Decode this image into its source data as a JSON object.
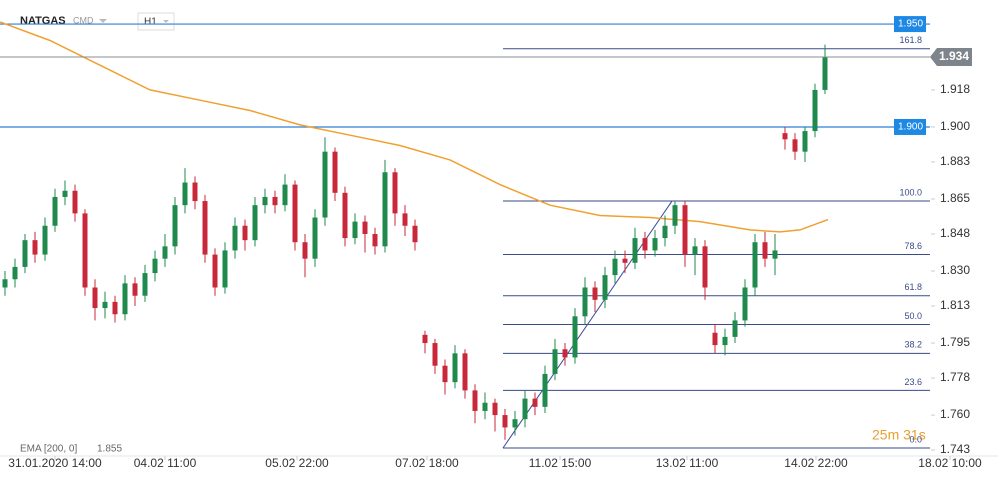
{
  "chart_data": {
    "type": "candlestick",
    "title": "NATGAS",
    "subtitle": "CMD",
    "timeframe": "H1",
    "countdown": "25m 31s",
    "xlim": [
      0,
      99.8
    ],
    "ylim": [
      1.7406,
      1.9617
    ],
    "xticks": [
      {
        "value": 5.5,
        "label": "31.01.2020 14:00"
      },
      {
        "value": 16.5,
        "label": "04.02 11:00"
      },
      {
        "value": 29.7,
        "label": "05.02 22:00"
      },
      {
        "value": 42.7,
        "label": "07.02 18:00"
      },
      {
        "value": 56,
        "label": "11.02 15:00"
      },
      {
        "value": 68.7,
        "label": "13.02 11:00"
      },
      {
        "value": 81.6,
        "label": "14.02 22:00"
      },
      {
        "value": 95,
        "label": "18.02 10:00"
      }
    ],
    "yticks": [
      {
        "value": 1.743,
        "label": "1.743"
      },
      {
        "value": 1.76,
        "label": "1.760"
      },
      {
        "value": 1.778,
        "label": "1.778"
      },
      {
        "value": 1.795,
        "label": "1.795"
      },
      {
        "value": 1.813,
        "label": "1.813"
      },
      {
        "value": 1.83,
        "label": "1.830"
      },
      {
        "value": 1.848,
        "label": "1.848"
      },
      {
        "value": 1.865,
        "label": "1.865"
      },
      {
        "value": 1.883,
        "label": "1.883"
      },
      {
        "value": 1.9,
        "label": "1.900"
      },
      {
        "value": 1.918,
        "label": "1.918"
      }
    ],
    "up_color": "#1f8a4c",
    "down_color": "#c8283a",
    "candles": {
      "open": [
        1.822,
        1.826,
        1.832,
        1.845,
        1.838,
        1.852,
        1.866,
        1.869,
        1.858,
        1.822,
        1.812,
        1.815,
        1.809,
        1.824,
        1.818,
        1.829,
        1.836,
        1.842,
        1.862,
        1.873,
        1.864,
        1.838,
        1.822,
        1.84,
        1.852,
        1.845,
        1.862,
        1.866,
        1.862,
        1.872,
        1.844,
        1.836,
        1.856,
        1.888,
        1.868,
        1.846,
        1.854,
        1.848,
        1.842,
        1.878,
        1.858,
        1.852,
        1.799,
        1.795,
        1.784,
        1.776,
        1.79,
        1.772,
        1.762,
        1.766,
        1.76,
        1.754,
        1.758,
        1.768,
        1.764,
        1.78,
        1.792,
        1.788,
        1.808,
        1.822,
        1.816,
        1.828,
        1.836,
        1.834,
        1.846,
        1.84,
        1.846,
        1.852,
        1.862,
        1.838,
        1.842,
        1.8,
        1.794,
        1.798,
        1.806,
        1.822,
        1.844,
        1.836,
        1.897,
        1.894,
        1.888,
        1.898,
        1.918
      ],
      "high": [
        1.83,
        1.836,
        1.848,
        1.849,
        1.856,
        1.87,
        1.874,
        1.872,
        1.86,
        1.826,
        1.82,
        1.818,
        1.828,
        1.827,
        1.833,
        1.84,
        1.848,
        1.866,
        1.88,
        1.876,
        1.867,
        1.841,
        1.844,
        1.856,
        1.855,
        1.866,
        1.87,
        1.869,
        1.877,
        1.874,
        1.848,
        1.86,
        1.895,
        1.89,
        1.871,
        1.858,
        1.857,
        1.851,
        1.884,
        1.88,
        1.862,
        1.855,
        1.801,
        1.797,
        1.787,
        1.794,
        1.792,
        1.775,
        1.771,
        1.768,
        1.763,
        1.762,
        1.772,
        1.771,
        1.784,
        1.797,
        1.795,
        1.812,
        1.827,
        1.825,
        1.832,
        1.84,
        1.84,
        1.851,
        1.849,
        1.85,
        1.857,
        1.864,
        1.864,
        1.846,
        1.845,
        1.804,
        1.802,
        1.81,
        1.826,
        1.848,
        1.849,
        1.848,
        1.9,
        1.897,
        1.9,
        1.921,
        1.94
      ],
      "low": [
        1.818,
        1.822,
        1.829,
        1.834,
        1.835,
        1.849,
        1.862,
        1.854,
        1.818,
        1.806,
        1.807,
        1.805,
        1.806,
        1.813,
        1.815,
        1.825,
        1.832,
        1.838,
        1.858,
        1.86,
        1.834,
        1.818,
        1.819,
        1.836,
        1.84,
        1.842,
        1.858,
        1.858,
        1.859,
        1.84,
        1.827,
        1.832,
        1.852,
        1.864,
        1.842,
        1.843,
        1.839,
        1.838,
        1.839,
        1.852,
        1.847,
        1.84,
        1.79,
        1.78,
        1.77,
        1.773,
        1.768,
        1.756,
        1.758,
        1.752,
        1.748,
        1.75,
        1.754,
        1.76,
        1.761,
        1.777,
        1.784,
        1.785,
        1.804,
        1.81,
        1.812,
        1.824,
        1.829,
        1.831,
        1.836,
        1.837,
        1.842,
        1.848,
        1.832,
        1.828,
        1.816,
        1.79,
        1.789,
        1.795,
        1.803,
        1.818,
        1.832,
        1.828,
        1.889,
        1.884,
        1.883,
        1.895,
        1.916
      ],
      "close": [
        1.826,
        1.832,
        1.845,
        1.838,
        1.852,
        1.866,
        1.869,
        1.858,
        1.822,
        1.812,
        1.815,
        1.809,
        1.824,
        1.818,
        1.829,
        1.836,
        1.842,
        1.862,
        1.873,
        1.864,
        1.838,
        1.822,
        1.84,
        1.852,
        1.845,
        1.862,
        1.866,
        1.862,
        1.872,
        1.844,
        1.836,
        1.856,
        1.888,
        1.868,
        1.846,
        1.854,
        1.848,
        1.842,
        1.878,
        1.858,
        1.852,
        1.844,
        1.795,
        1.784,
        1.776,
        1.79,
        1.772,
        1.762,
        1.766,
        1.76,
        1.754,
        1.758,
        1.768,
        1.764,
        1.78,
        1.792,
        1.788,
        1.808,
        1.822,
        1.816,
        1.828,
        1.836,
        1.834,
        1.846,
        1.84,
        1.846,
        1.852,
        1.862,
        1.838,
        1.842,
        1.822,
        1.794,
        1.798,
        1.806,
        1.822,
        1.844,
        1.836,
        1.84,
        1.894,
        1.888,
        1.898,
        1.918,
        1.934
      ]
    },
    "ema": {
      "name": "EMA [200, 0]",
      "color": "#f0a030",
      "x": [
        0,
        5,
        10,
        15,
        20,
        25,
        30,
        35,
        40,
        45,
        50,
        55,
        60,
        65,
        70,
        75,
        78,
        80,
        82.8
      ],
      "values": [
        1.951,
        1.942,
        1.93,
        1.918,
        1.913,
        1.908,
        1.901,
        1.896,
        1.891,
        1.884,
        1.872,
        1.862,
        1.857,
        1.856,
        1.854,
        1.85,
        1.849,
        1.85,
        1.855
      ]
    },
    "levels": [
      {
        "value": 1.95,
        "label": "1.950",
        "color": "#2f7fd6"
      },
      {
        "value": 1.9,
        "label": "1.900",
        "color": "#2f7fd6"
      }
    ],
    "current": {
      "value": 1.934,
      "label": "1.934",
      "color": "#8a8f96"
    },
    "fib": {
      "color": "#3a4a8a",
      "x_start": 50.3,
      "levels": [
        {
          "label": "161.8",
          "value": 1.938
        },
        {
          "label": "100.0",
          "value": 1.864
        },
        {
          "label": "78.6",
          "value": 1.838
        },
        {
          "label": "61.8",
          "value": 1.818
        },
        {
          "label": "50.0",
          "value": 1.804
        },
        {
          "label": "38.2",
          "value": 1.79
        },
        {
          "label": "23.6",
          "value": 1.772
        },
        {
          "label": "0.0",
          "value": 1.744
        }
      ]
    },
    "trendline": {
      "x": [
        50.3,
        67.2
      ],
      "y": [
        1.744,
        1.864
      ]
    }
  }
}
